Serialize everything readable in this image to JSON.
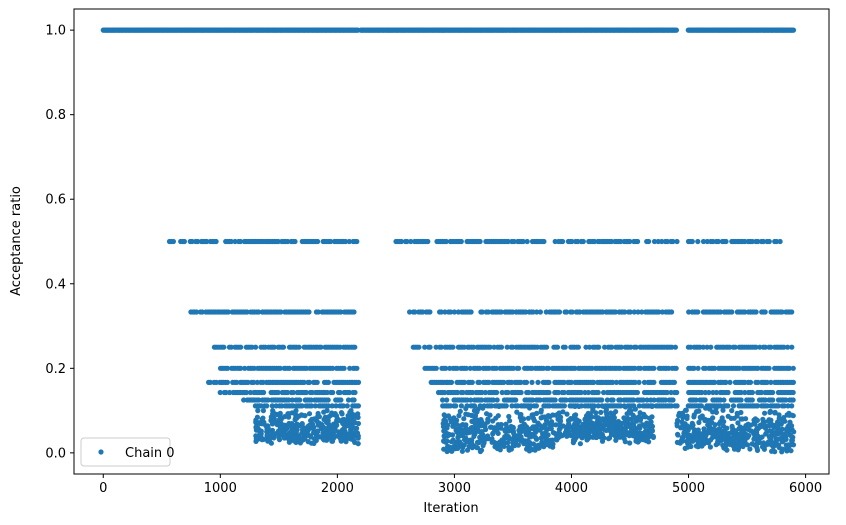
{
  "chart_data": {
    "type": "scatter",
    "title": "",
    "xlabel": "Iteration",
    "ylabel": "Acceptance ratio",
    "xlim": [
      -250,
      6200
    ],
    "ylim": [
      -0.05,
      1.05
    ],
    "x_ticks": [
      0,
      1000,
      2000,
      3000,
      4000,
      5000,
      6000
    ],
    "y_ticks": [
      0.0,
      0.2,
      0.4,
      0.6,
      0.8,
      1.0
    ],
    "x_tick_labels": [
      "0",
      "1000",
      "2000",
      "3000",
      "4000",
      "5000",
      "6000"
    ],
    "y_tick_labels": [
      "0.0",
      "0.2",
      "0.4",
      "0.6",
      "0.8",
      "1.0"
    ],
    "grid": false,
    "legend_position": "lower-left",
    "colors": {
      "series": "#1f77b4",
      "axis": "#000000",
      "legend_border": "#cccccc"
    },
    "series": [
      {
        "name": "Chain 0",
        "marker": "circle",
        "bands": [
          {
            "y": 1.0,
            "segments": [
              [
                0,
                2180
              ],
              [
                2200,
                2900
              ],
              [
                2900,
                4900
              ],
              [
                5000,
                5900
              ]
            ],
            "density": "dense"
          },
          {
            "y": 0.5,
            "segments": [
              [
                550,
                2180
              ],
              [
                2500,
                4900
              ],
              [
                5000,
                5800
              ]
            ],
            "density": "medium"
          },
          {
            "y": 0.3333,
            "segments": [
              [
                750,
                2180
              ],
              [
                2600,
                4900
              ],
              [
                5000,
                5900
              ]
            ],
            "density": "medium"
          },
          {
            "y": 0.25,
            "segments": [
              [
                950,
                2180
              ],
              [
                2650,
                4900
              ],
              [
                5000,
                5900
              ]
            ],
            "density": "medium"
          },
          {
            "y": 0.2,
            "segments": [
              [
                1000,
                2180
              ],
              [
                2750,
                4900
              ],
              [
                5000,
                5900
              ]
            ],
            "density": "medium"
          },
          {
            "y": 0.1667,
            "segments": [
              [
                900,
                2180
              ],
              [
                2800,
                4900
              ],
              [
                5000,
                5900
              ]
            ],
            "density": "medium"
          },
          {
            "y": 0.1429,
            "segments": [
              [
                1000,
                2180
              ],
              [
                2850,
                4900
              ],
              [
                5000,
                5900
              ]
            ],
            "density": "medium"
          },
          {
            "y": 0.125,
            "segments": [
              [
                1200,
                2180
              ],
              [
                2900,
                4900
              ],
              [
                5000,
                5900
              ]
            ],
            "density": "medium"
          },
          {
            "y": 0.1111,
            "segments": [
              [
                1300,
                2180
              ],
              [
                2900,
                4900
              ],
              [
                5000,
                5900
              ]
            ],
            "density": "medium"
          }
        ],
        "clusters": [
          {
            "x_range": [
              1300,
              2180
            ],
            "y_range": [
              0.02,
              0.1
            ]
          },
          {
            "x_range": [
              2900,
              3850
            ],
            "y_range": [
              0.0,
              0.11
            ]
          },
          {
            "x_range": [
              3850,
              4700
            ],
            "y_range": [
              0.02,
              0.11
            ]
          },
          {
            "x_range": [
              4900,
              5300
            ],
            "y_range": [
              0.01,
              0.11
            ]
          },
          {
            "x_range": [
              5300,
              5900
            ],
            "y_range": [
              0.0,
              0.1
            ]
          }
        ]
      }
    ]
  }
}
